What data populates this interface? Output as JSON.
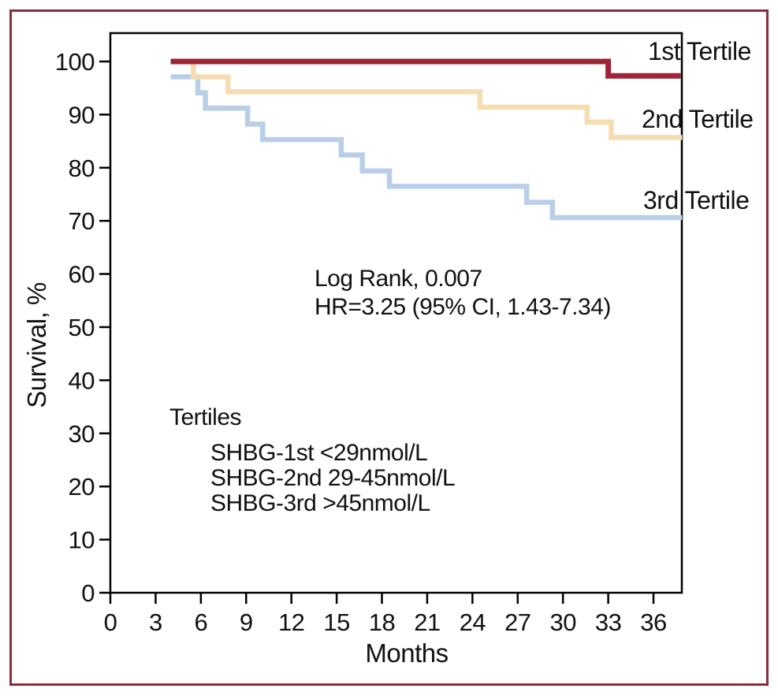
{
  "figure": {
    "background_color": "#ffffff",
    "border_color": "#8C2B3C"
  },
  "chart_data": {
    "type": "line",
    "subtype": "kaplan-meier-step-survival",
    "title": "",
    "xlabel": "Months",
    "ylabel": "Survival, %",
    "xlim": [
      0,
      38
    ],
    "ylim": [
      0,
      100
    ],
    "x_ticks": [
      0,
      3,
      6,
      9,
      12,
      15,
      18,
      21,
      24,
      27,
      30,
      33,
      36
    ],
    "y_ticks": [
      0,
      10,
      20,
      30,
      40,
      50,
      60,
      70,
      80,
      90,
      100
    ],
    "grid": false,
    "legend_position": "labels-at-line-ends-right",
    "series": [
      {
        "name": "1st Tertile",
        "color": "#9E2438",
        "points": [
          [
            4.0,
            100
          ],
          [
            33.0,
            100
          ],
          [
            33.0,
            97.3
          ],
          [
            37.8,
            97.3
          ]
        ]
      },
      {
        "name": "2nd Tertile",
        "color": "#F5DDB0",
        "points": [
          [
            4.0,
            100
          ],
          [
            5.5,
            100
          ],
          [
            5.5,
            97.1
          ],
          [
            7.8,
            97.1
          ],
          [
            7.8,
            94.3
          ],
          [
            24.5,
            94.3
          ],
          [
            24.5,
            91.4
          ],
          [
            31.6,
            91.4
          ],
          [
            31.6,
            88.6
          ],
          [
            33.2,
            88.6
          ],
          [
            33.2,
            85.7
          ],
          [
            37.9,
            85.7
          ]
        ]
      },
      {
        "name": "3rd Tertile",
        "color": "#B9CFE8",
        "points": [
          [
            4.0,
            97.1
          ],
          [
            5.8,
            97.1
          ],
          [
            5.8,
            94.1
          ],
          [
            6.3,
            94.1
          ],
          [
            6.3,
            91.2
          ],
          [
            9.1,
            91.2
          ],
          [
            9.1,
            88.2
          ],
          [
            10.1,
            88.2
          ],
          [
            10.1,
            85.3
          ],
          [
            15.3,
            85.3
          ],
          [
            15.3,
            82.4
          ],
          [
            16.7,
            82.4
          ],
          [
            16.7,
            79.4
          ],
          [
            18.5,
            79.4
          ],
          [
            18.5,
            76.5
          ],
          [
            27.6,
            76.5
          ],
          [
            27.6,
            73.5
          ],
          [
            29.3,
            73.5
          ],
          [
            29.3,
            70.6
          ],
          [
            37.9,
            70.6
          ]
        ]
      }
    ],
    "annotations": {
      "stats_line1": "Log Rank, 0.007",
      "stats_line2": "HR=3.25 (95% CI, 1.43-7.34)",
      "legend_title": "Tertiles",
      "legend_items": [
        "SHBG-1st <29nmol/L",
        "SHBG-2nd 29-45nmol/L",
        "SHBG-3rd >45nmol/L"
      ]
    }
  }
}
